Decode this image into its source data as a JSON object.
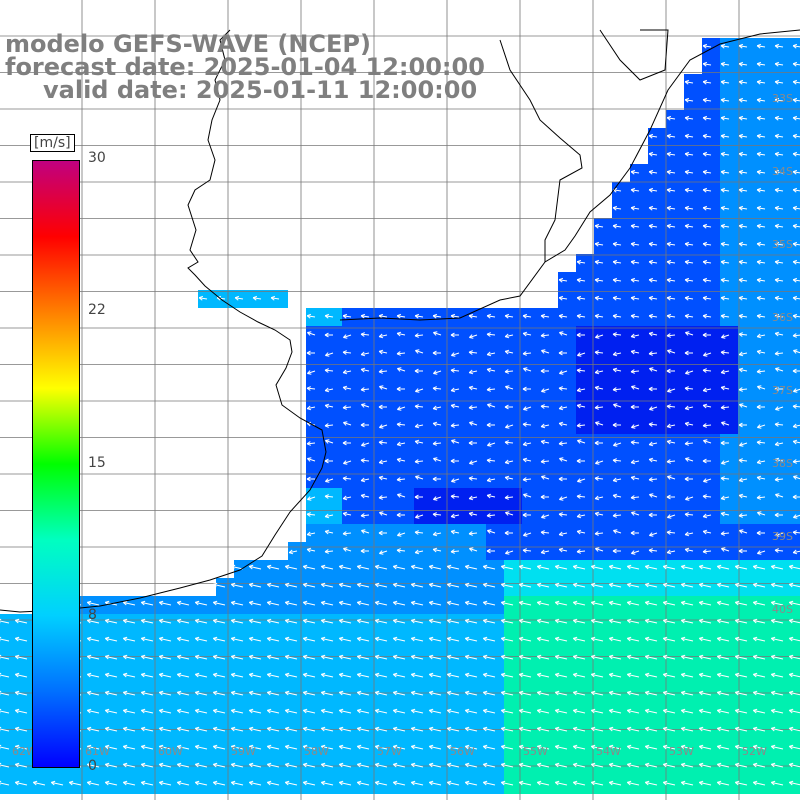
{
  "title": {
    "model": "modelo GEFS-WAVE (NCEP)",
    "forecast": "forecast date: 2025-01-04 12:00:00",
    "valid": "valid date: 2025-01-11 12:00:00"
  },
  "colorbar": {
    "unit": "[m/s]",
    "ticks": [
      "30",
      "22",
      "15",
      "8",
      "0"
    ],
    "colors": [
      "#0000ff",
      "#0070ff",
      "#00d0ff",
      "#00ffc0",
      "#00ff00",
      "#ffff00",
      "#ff8000",
      "#ff0000",
      "#c00080"
    ]
  },
  "grid_labels": {
    "right": [
      "33S",
      "34S",
      "35S",
      "36S",
      "37S",
      "38S",
      "39S",
      "40S"
    ],
    "bottom": [
      "62W",
      "61W",
      "60W",
      "59W",
      "58W",
      "57W",
      "56W",
      "55W",
      "54W",
      "53W",
      "52W"
    ]
  },
  "field": {
    "colors": {
      "deep_blue": "#0020f0",
      "blue": "#0050ff",
      "mid_blue": "#0090ff",
      "light_blue": "#00b8ff",
      "cyan": "#00e0f0",
      "green_cyan": "#00f0b0"
    }
  }
}
